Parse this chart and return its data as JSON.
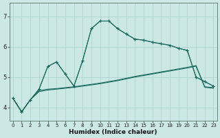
{
  "xlabel": "Humidex (Indice chaleur)",
  "bg_color": "#cce8e5",
  "line_color": "#1a6b5e",
  "grid_color": "#aacfcb",
  "x_ticks": [
    0,
    1,
    2,
    3,
    4,
    5,
    6,
    7,
    8,
    9,
    10,
    11,
    12,
    13,
    14,
    15,
    16,
    17,
    18,
    19,
    20,
    21,
    22,
    23
  ],
  "y_ticks": [
    4,
    5,
    6,
    7
  ],
  "ylim": [
    3.55,
    7.45
  ],
  "xlim": [
    -0.4,
    23.4
  ],
  "jagged1": [
    4.3,
    3.85,
    4.25,
    4.6,
    5.35,
    5.5,
    5.1,
    4.7,
    5.55,
    6.6,
    6.85,
    6.85,
    6.6,
    6.42,
    6.25,
    6.22,
    6.15,
    6.1,
    6.05,
    5.95,
    5.88,
    5.0,
    4.85,
    4.7
  ],
  "jagged2": [
    4.3,
    3.85,
    4.25,
    4.6,
    5.35,
    5.5,
    5.1,
    4.7,
    5.55,
    6.6,
    6.85,
    6.85,
    6.6,
    6.42,
    6.25,
    6.22,
    6.15,
    6.1,
    6.05,
    5.95,
    5.88,
    5.0,
    4.85,
    4.7
  ],
  "smooth1": [
    4.3,
    3.85,
    4.25,
    4.55,
    4.6,
    4.62,
    4.65,
    4.68,
    4.72,
    4.76,
    4.8,
    4.85,
    4.9,
    4.96,
    5.02,
    5.07,
    5.12,
    5.17,
    5.22,
    5.27,
    5.32,
    5.38,
    4.68,
    4.65
  ],
  "smooth2": [
    4.3,
    3.85,
    4.25,
    4.52,
    4.57,
    4.6,
    4.63,
    4.66,
    4.7,
    4.74,
    4.78,
    4.83,
    4.88,
    4.94,
    5.0,
    5.05,
    5.1,
    5.15,
    5.2,
    5.25,
    5.3,
    5.36,
    4.66,
    4.63
  ]
}
